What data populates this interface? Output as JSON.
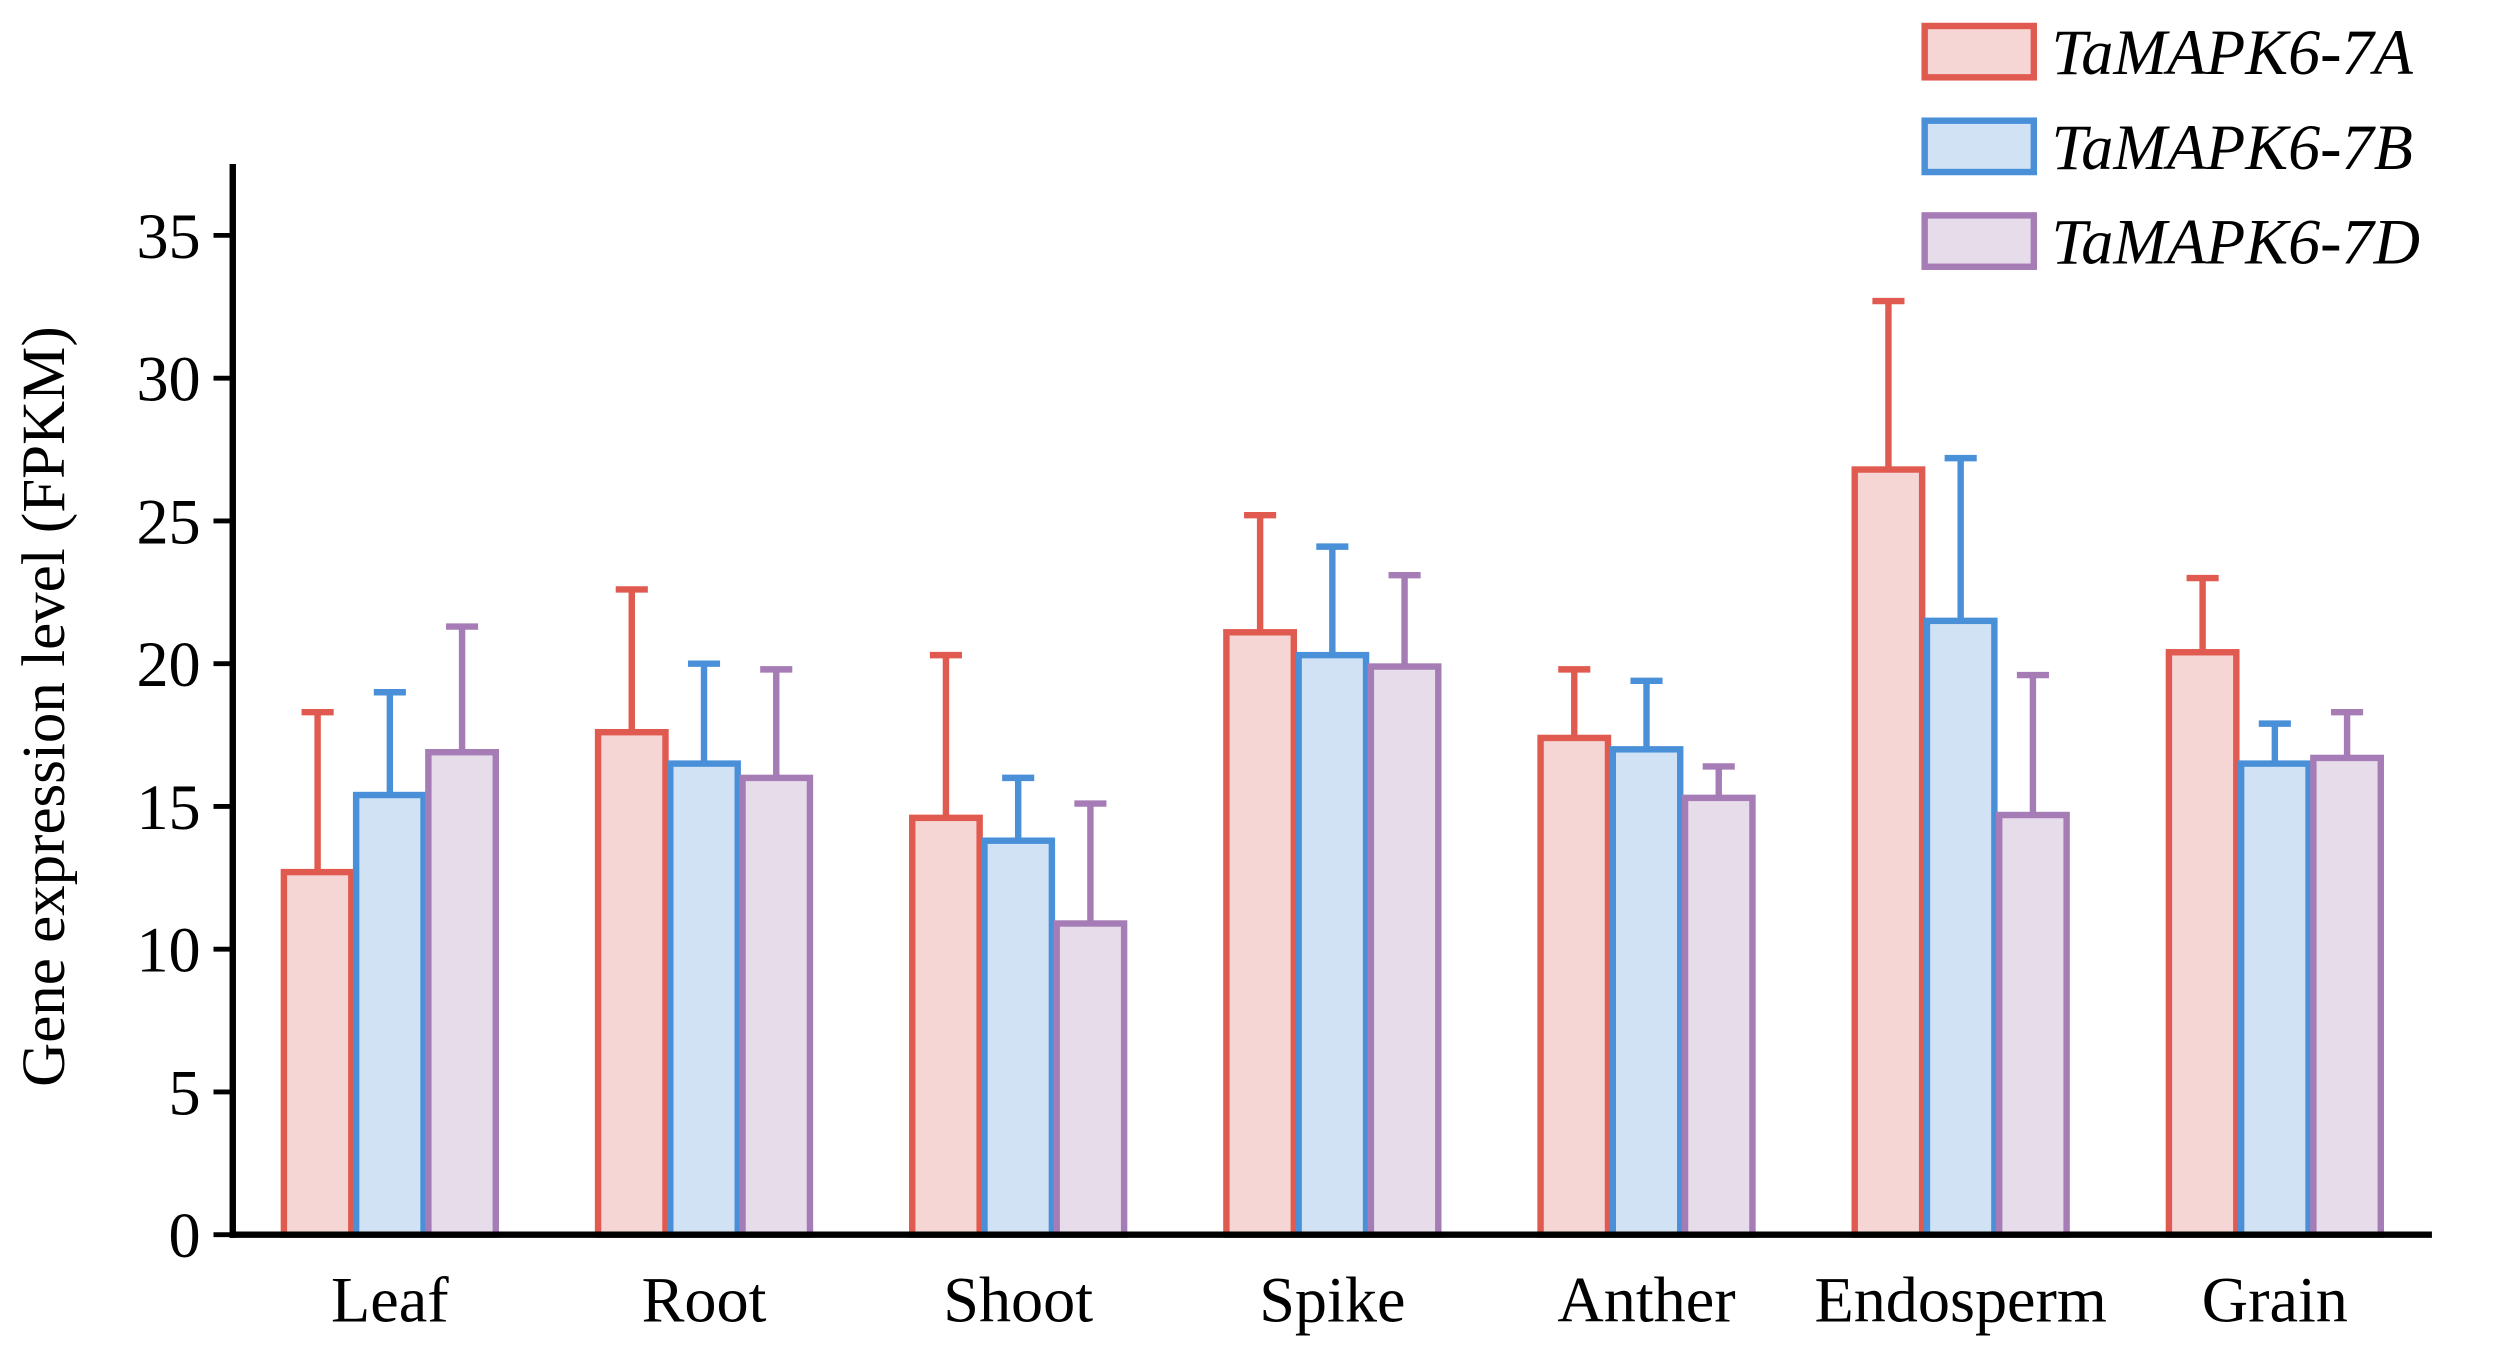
{
  "chart_data": {
    "type": "bar",
    "y_label": "Gene expression level (FPKM)",
    "categories": [
      "Leaf",
      "Root",
      "Shoot",
      "Spike",
      "Anther",
      "Endosperm",
      "Grain"
    ],
    "series": [
      {
        "name": "TaMAPK6-7A",
        "color": "#e05a4f",
        "fill": "#f6d6d4",
        "values": [
          12.7,
          17.6,
          14.6,
          21.1,
          17.4,
          26.8,
          20.4
        ],
        "errors": [
          5.6,
          5.0,
          5.7,
          4.1,
          2.4,
          5.9,
          2.6
        ]
      },
      {
        "name": "TaMAPK6-7B",
        "color": "#4a90d9",
        "fill": "#d0e2f4",
        "values": [
          15.4,
          16.5,
          13.8,
          20.3,
          17.0,
          21.5,
          16.5
        ],
        "errors": [
          3.6,
          3.5,
          2.2,
          3.8,
          2.4,
          5.7,
          1.4
        ]
      },
      {
        "name": "TaMAPK6-7D",
        "color": "#a57cb5",
        "fill": "#e6dcea",
        "values": [
          16.9,
          16.0,
          10.9,
          19.9,
          15.3,
          14.7,
          16.7
        ],
        "errors": [
          4.4,
          3.8,
          4.2,
          3.2,
          1.1,
          4.9,
          1.6
        ]
      }
    ],
    "ylim": [
      0,
      37.5
    ],
    "yticks": [
      0,
      5,
      10,
      15,
      20,
      25,
      30,
      35
    ],
    "legend": "top-right"
  }
}
